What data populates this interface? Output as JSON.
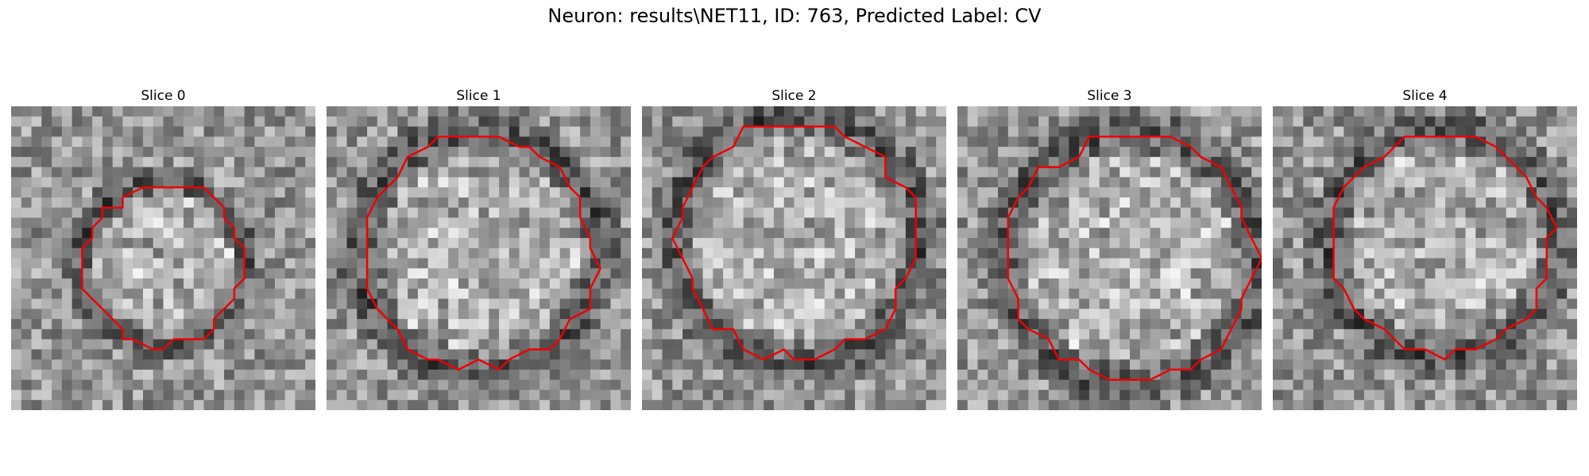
{
  "figure": {
    "title": "Neuron: results\\NET11, ID: 763, Predicted Label: CV",
    "contour_color": "#ee0000"
  },
  "panels": [
    {
      "title": "Slice 0"
    },
    {
      "title": "Slice 1"
    },
    {
      "title": "Slice 2"
    },
    {
      "title": "Slice 3"
    },
    {
      "title": "Slice 4"
    }
  ]
}
